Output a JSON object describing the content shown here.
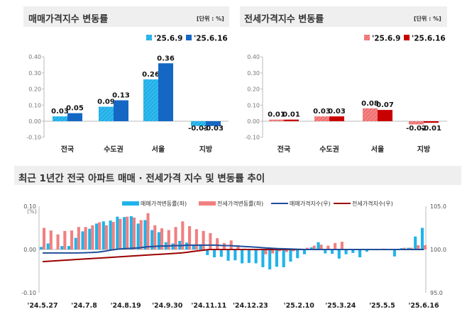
{
  "chart_data": [
    {
      "type": "bar",
      "title": "매매가격지수 변동률",
      "unit": "[단위 : %]",
      "categories": [
        "전국",
        "수도권",
        "서울",
        "지방"
      ],
      "ylim": [
        -0.1,
        0.4
      ],
      "yticks": [
        "0.40",
        "0.30",
        "0.20",
        "0.10",
        "0.00",
        "-0.10"
      ],
      "legend_position": "top-right",
      "series": [
        {
          "name": "'25.6.9",
          "values": [
            0.03,
            0.09,
            0.26,
            -0.03
          ],
          "labels": [
            "0.03",
            "0.09",
            "0.26",
            "-0.03"
          ],
          "color": "#1fb0e8"
        },
        {
          "name": "'25.6.16",
          "values": [
            0.05,
            0.13,
            0.36,
            -0.03
          ],
          "labels": [
            "0.05",
            "0.13",
            "0.36",
            "-0.03"
          ],
          "color": "#1567c4"
        }
      ]
    },
    {
      "type": "bar",
      "title": "전세가격지수 변동률",
      "unit": "[단위 : %]",
      "categories": [
        "전국",
        "수도권",
        "서울",
        "지방"
      ],
      "ylim": [
        -0.1,
        0.4
      ],
      "yticks": [
        "0.40",
        "0.30",
        "0.20",
        "0.10",
        "0.00",
        "-0.10"
      ],
      "legend_position": "top-right",
      "series": [
        {
          "name": "'25.6.9",
          "values": [
            0.01,
            0.03,
            0.08,
            -0.02
          ],
          "labels": [
            "0.01",
            "0.03",
            "0.08",
            "-0.02"
          ],
          "color": "#f07272"
        },
        {
          "name": "'25.6.16",
          "values": [
            0.01,
            0.03,
            0.07,
            -0.01
          ],
          "labels": [
            "0.01",
            "0.03",
            "0.07",
            "-0.01"
          ],
          "color": "#c80000"
        }
      ]
    },
    {
      "type": "bar+line",
      "title": "최근 1년간 전국 아파트 매매 · 전세가격 지수 및 변동률 추이",
      "left_unit": "(%)",
      "ylim_left": [
        -0.1,
        0.1
      ],
      "yticks_left": [
        "0.10",
        "0.00",
        "-0.10"
      ],
      "ylim_right": [
        95.0,
        105.0
      ],
      "yticks_right": [
        "105.0",
        "100.0",
        "95.0"
      ],
      "xtick_labels": [
        "'24.5.27",
        "'24.7.8",
        "'24.8.19",
        "'24.9.30",
        "'24.11.11",
        "'24.12.23",
        "'25.2.10",
        "'25.3.24",
        "'25.5.5",
        "'25.6.16"
      ],
      "legend_position": "top",
      "series": [
        {
          "name": "매매가격변동률(좌)",
          "kind": "bar",
          "axis": "left",
          "color": "#1fb4ea",
          "values": [
            0.006,
            0.014,
            0,
            0.008,
            0.008,
            0.027,
            0.042,
            0.048,
            0.06,
            0.065,
            0.067,
            0.076,
            0.075,
            0.077,
            0.06,
            0.068,
            0.045,
            0.04,
            0.017,
            0.014,
            0.02,
            0.016,
            0.01,
            0.012,
            -0.013,
            -0.018,
            -0.017,
            -0.026,
            -0.025,
            -0.032,
            -0.031,
            -0.032,
            -0.041,
            -0.046,
            -0.04,
            -0.041,
            -0.028,
            -0.02,
            -0.011,
            0.005,
            0.017,
            -0.009,
            -0.01,
            -0.021,
            -0.011,
            -0.008,
            -0.018,
            -0.005,
            0,
            0,
            0,
            -0.016,
            0.003,
            0.004,
            0.03,
            0.05
          ]
        },
        {
          "name": "전세가격변동률(좌)",
          "kind": "bar",
          "axis": "left",
          "color": "#f08080",
          "values": [
            0.05,
            0.044,
            0.035,
            0.043,
            0.044,
            0.052,
            0.052,
            0.056,
            0.063,
            0.056,
            0.064,
            0.071,
            0.076,
            0.074,
            0.068,
            0.084,
            0.056,
            0.049,
            0.045,
            0.052,
            0.065,
            0.054,
            0.047,
            0.043,
            0.038,
            0.026,
            0.015,
            0.021,
            0.01,
            0.002,
            -0.002,
            -0.002,
            -0.011,
            -0.009,
            -0.004,
            -0.006,
            -0.004,
            0.002,
            0.004,
            0.009,
            0.011,
            0.009,
            0.015,
            0.018,
            0.001,
            0,
            0,
            0,
            0.001,
            0.002,
            0.001,
            0.001,
            0.004,
            0.004,
            0.01,
            0.01
          ]
        },
        {
          "name": "매매가격지수(우)",
          "kind": "line",
          "axis": "right",
          "color": "#1f4e9a",
          "values": [
            99.6,
            99.6,
            99.6,
            99.6,
            99.6,
            99.6,
            99.62,
            99.65,
            99.7,
            99.8,
            99.95,
            100.05,
            100.1,
            100.15,
            100.2,
            100.3,
            100.35,
            100.4,
            100.4,
            100.45,
            100.45,
            100.5,
            100.5,
            100.5,
            100.5,
            100.5,
            100.45,
            100.45,
            100.4,
            100.35,
            100.3,
            100.25,
            100.2,
            100.15,
            100.1,
            100.08,
            100.05,
            100.02,
            100.0,
            100,
            100,
            100,
            100,
            100,
            100,
            100,
            100,
            100,
            100,
            100,
            100,
            100,
            100,
            100,
            100,
            100
          ]
        },
        {
          "name": "전세가격지수(우)",
          "kind": "line",
          "axis": "right",
          "color": "#9b0000",
          "values": [
            98.6,
            98.65,
            98.7,
            98.75,
            98.8,
            98.85,
            98.9,
            98.95,
            99.0,
            99.05,
            99.1,
            99.15,
            99.2,
            99.25,
            99.3,
            99.35,
            99.4,
            99.45,
            99.5,
            99.55,
            99.6,
            99.7,
            99.8,
            99.9,
            100,
            100,
            100,
            100,
            100,
            100,
            100,
            100,
            100,
            100,
            100,
            100,
            100,
            100,
            100,
            100,
            100,
            100,
            100,
            100,
            100,
            100,
            100,
            100,
            100,
            100,
            100,
            100,
            100,
            100,
            100,
            100
          ]
        }
      ]
    }
  ]
}
